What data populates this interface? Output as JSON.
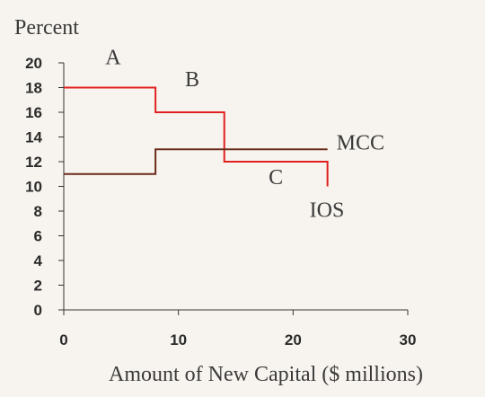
{
  "chart_data": {
    "type": "line",
    "title": "",
    "ylabel": "Percent",
    "xlabel": "Amount of New Capital ($ millions)",
    "xlim": [
      0,
      30
    ],
    "ylim": [
      0,
      20
    ],
    "x_ticks": [
      0,
      10,
      20,
      30
    ],
    "y_ticks": [
      0,
      2,
      4,
      6,
      8,
      10,
      12,
      14,
      16,
      18,
      20
    ],
    "grid": false,
    "series": [
      {
        "name": "IOS",
        "color": "#e02020",
        "step": true,
        "points": [
          [
            0,
            18
          ],
          [
            8,
            18
          ],
          [
            8,
            16
          ],
          [
            14,
            16
          ],
          [
            14,
            12
          ],
          [
            23,
            12
          ],
          [
            23,
            10
          ]
        ]
      },
      {
        "name": "MCC",
        "color": "#6b2a1a",
        "step": true,
        "points": [
          [
            0,
            11
          ],
          [
            8,
            11
          ],
          [
            8,
            13
          ],
          [
            23,
            13
          ]
        ]
      }
    ],
    "annotations": [
      {
        "text": "A",
        "x": 4.3,
        "y": 19.9
      },
      {
        "text": "B",
        "x": 11.2,
        "y": 18.1
      },
      {
        "text": "C",
        "x": 18.5,
        "y": 10.2
      }
    ]
  }
}
